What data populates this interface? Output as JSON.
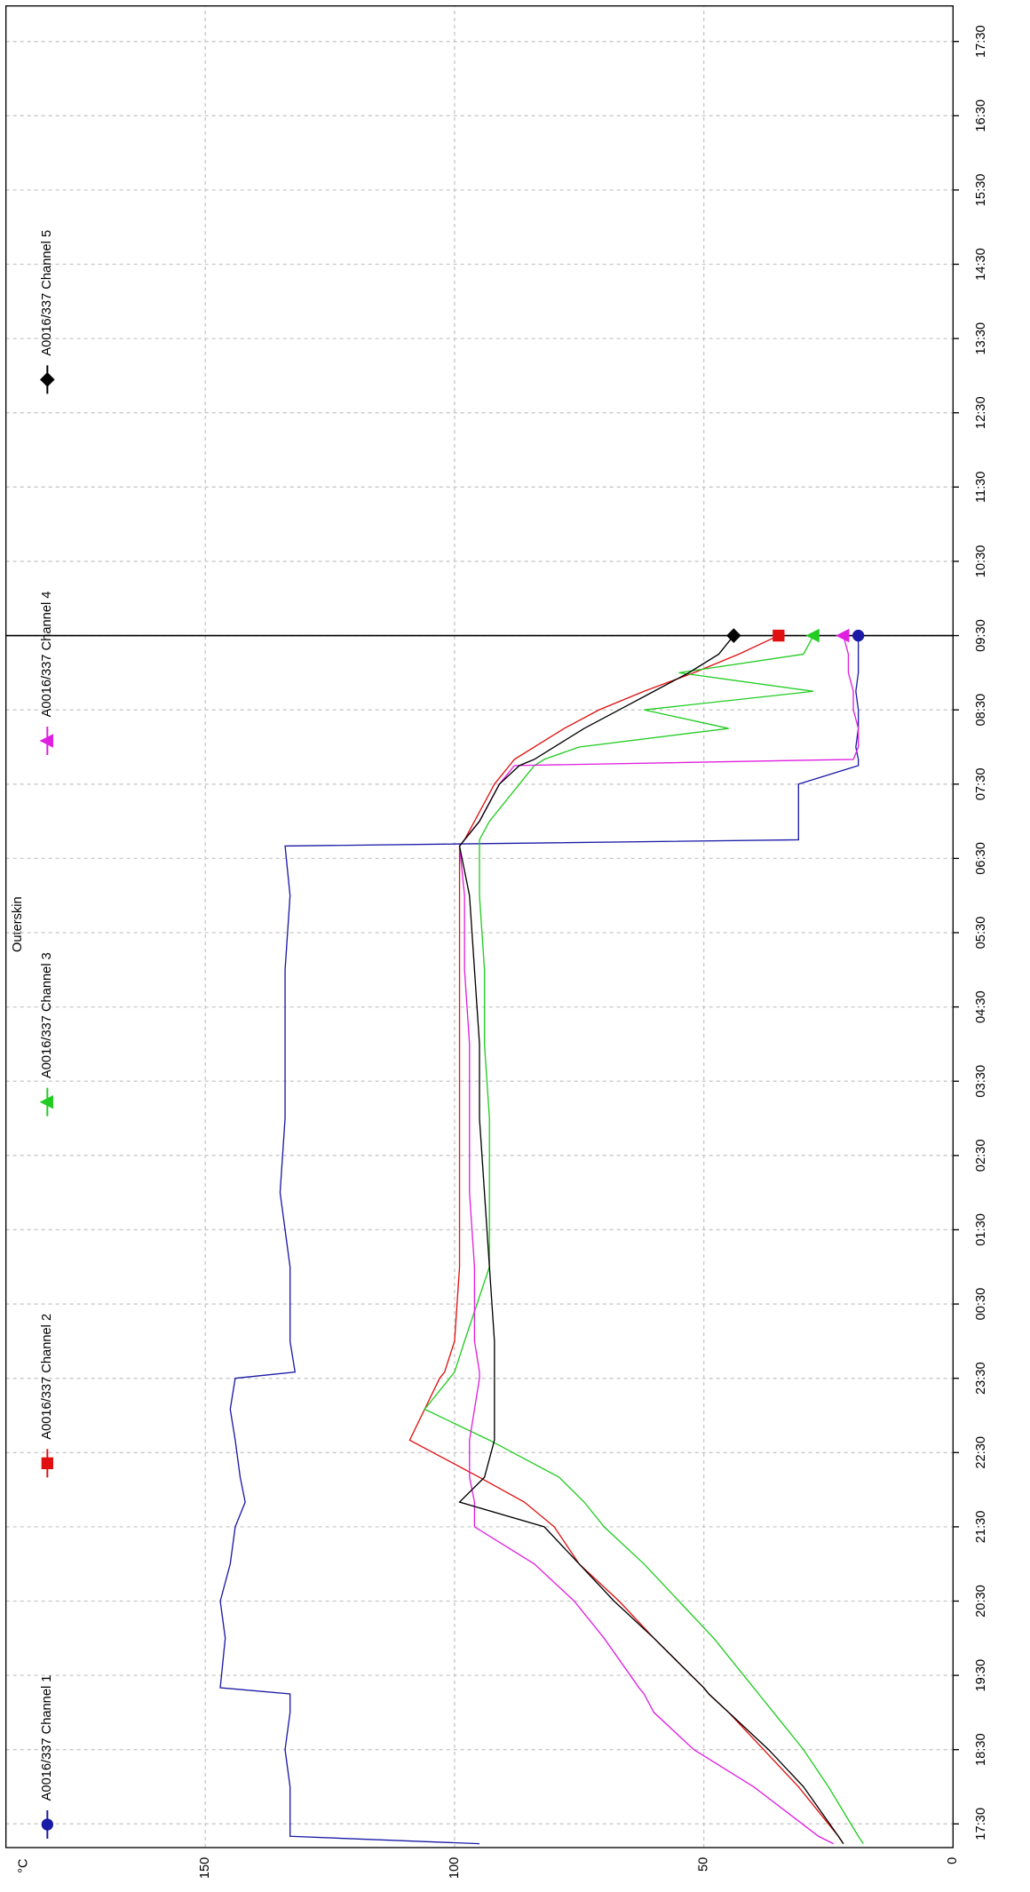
{
  "chart_data": {
    "type": "line",
    "title": "Outerskin",
    "ylabel": "°C",
    "x": [
      "17:14",
      "17:20",
      "18:00",
      "18:30",
      "19:00",
      "19:15",
      "19:20",
      "20:00",
      "20:30",
      "21:00",
      "21:30",
      "21:50",
      "22:10",
      "22:40",
      "23:05",
      "23:30",
      "23:35",
      "00:00",
      "01:00",
      "02:00",
      "03:00",
      "04:00",
      "05:00",
      "06:00",
      "06:40",
      "06:45",
      "07:00",
      "07:30",
      "07:45",
      "07:50",
      "08:00",
      "08:15",
      "08:30",
      "08:45",
      "09:00",
      "09:15",
      "09:30"
    ],
    "series": [
      {
        "name": "A0016/337 Channel 1",
        "color": "#1a1aa6",
        "marker": "circle",
        "values": [
          95,
          133,
          133,
          134,
          133,
          133,
          147,
          146,
          147,
          145,
          144,
          142,
          143,
          144,
          145,
          144,
          132,
          133,
          133,
          135,
          134,
          134,
          134,
          133,
          134,
          31,
          31,
          31,
          19,
          19,
          19.5,
          19,
          19,
          19.5,
          19,
          19,
          19
        ]
      },
      {
        "name": "A0016/337 Channel 2",
        "color": "#e01010",
        "marker": "square",
        "values": [
          22,
          23,
          31,
          38,
          45,
          49,
          50,
          60,
          67,
          75,
          80,
          86,
          95,
          109,
          106,
          103,
          102,
          100,
          99,
          99,
          99,
          99,
          99,
          99,
          99,
          98,
          96,
          92,
          89,
          88,
          84,
          78,
          71,
          62,
          52,
          43,
          35
        ]
      },
      {
        "name": "A0016/337 Channel 3",
        "color": "#22cc22",
        "marker": "triangle",
        "values": [
          18,
          19,
          25,
          30,
          36,
          39,
          40,
          48,
          55,
          62,
          70,
          74,
          79,
          93,
          106,
          101,
          100,
          98,
          93,
          93,
          93,
          94,
          94,
          95,
          95,
          95,
          93,
          87,
          84,
          82,
          75,
          45,
          62,
          28,
          55,
          30,
          28
        ]
      },
      {
        "name": "A0016/337 Channel 4",
        "color": "#e020e0",
        "marker": "triangle",
        "values": [
          24,
          27,
          40,
          52,
          60,
          62,
          63,
          70,
          76,
          84,
          96,
          96,
          97,
          97,
          96,
          95,
          95,
          96,
          96,
          97,
          97,
          97,
          98,
          98,
          99,
          98,
          95,
          91,
          88,
          20,
          19,
          19,
          20,
          20,
          21,
          21,
          22
        ]
      },
      {
        "name": "A0016/337 Channel 5",
        "color": "#000000",
        "marker": "diamond",
        "values": [
          22,
          23,
          30,
          37,
          45,
          49,
          50,
          60,
          68,
          75,
          82,
          99,
          94,
          92,
          92,
          92,
          92,
          92,
          93,
          94,
          95,
          95,
          96,
          97,
          99,
          98,
          95,
          91,
          87,
          84,
          80,
          74,
          67,
          60,
          53,
          47,
          44
        ]
      }
    ],
    "xlim": [
      "17:30",
      "17:30"
    ],
    "xticks": [
      "17:30",
      "18:30",
      "19:30",
      "20:30",
      "21:30",
      "22:30",
      "23:30",
      "00:30",
      "01:30",
      "02:30",
      "03:30",
      "04:30",
      "05:30",
      "06:30",
      "07:30",
      "08:30",
      "09:30",
      "10:30",
      "11:30",
      "12:30",
      "13:30",
      "14:30",
      "15:30",
      "16:30",
      "17:30"
    ],
    "ylim": [
      0,
      190
    ],
    "yticks": [
      0,
      50,
      100,
      150
    ],
    "grid": true
  }
}
